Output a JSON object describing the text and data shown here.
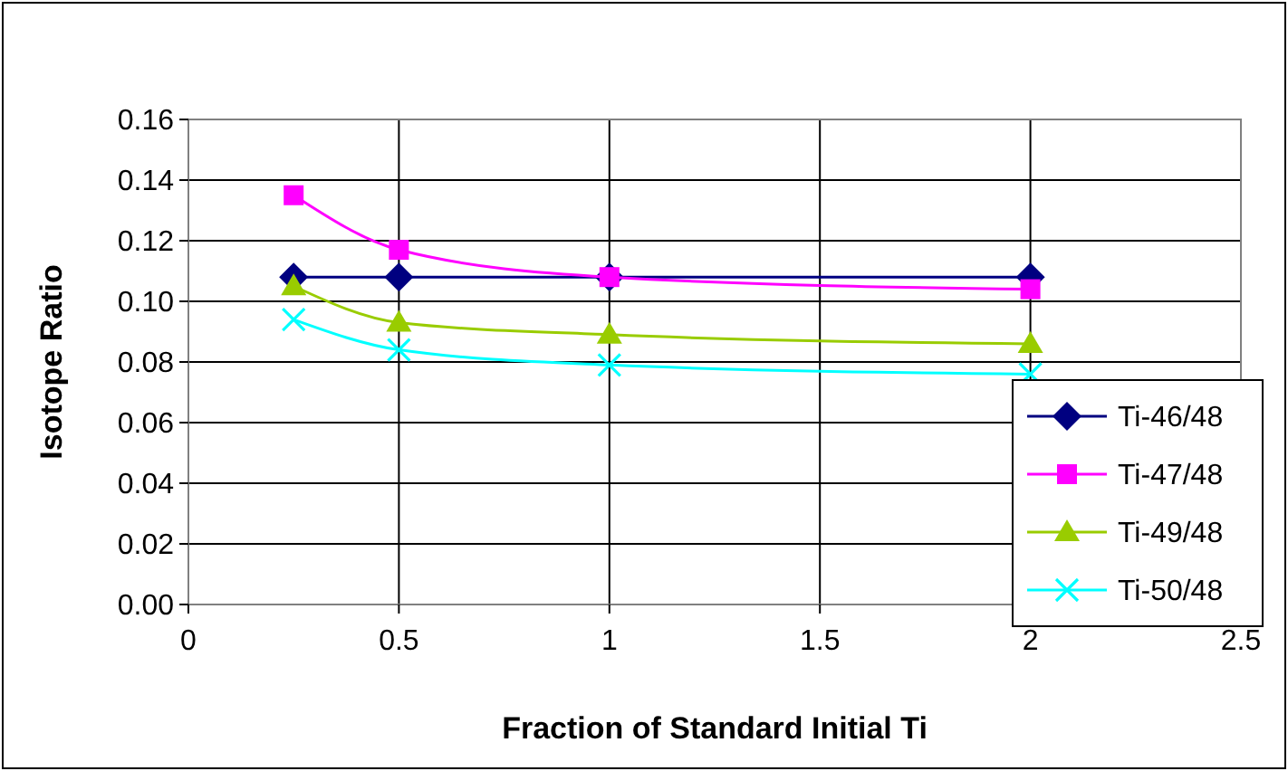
{
  "chart_data": {
    "type": "line",
    "xlabel": "Fraction of Standard Initial Ti",
    "ylabel": "Isotope Ratio",
    "x": [
      0.25,
      0.5,
      1,
      2
    ],
    "series": [
      {
        "name": "Ti-46/48",
        "color": "#000080",
        "marker": "diamond",
        "values": [
          0.108,
          0.108,
          0.108,
          0.108
        ]
      },
      {
        "name": "Ti-47/48",
        "color": "#ff00ff",
        "marker": "square",
        "values": [
          0.135,
          0.117,
          0.108,
          0.104
        ]
      },
      {
        "name": "Ti-49/48",
        "color": "#99cc00",
        "marker": "triangle",
        "values": [
          0.105,
          0.093,
          0.089,
          0.086
        ]
      },
      {
        "name": "Ti-50/48",
        "color": "#00ffff",
        "marker": "cross",
        "values": [
          0.094,
          0.084,
          0.079,
          0.076
        ]
      }
    ],
    "xlim": [
      0,
      2.5
    ],
    "xticks": [
      0,
      0.5,
      1,
      1.5,
      2,
      2.5
    ],
    "ylim": [
      0,
      0.16
    ],
    "yticks": [
      {
        "value": 0,
        "label": "0.00"
      },
      {
        "value": 0.02,
        "label": "0.02"
      },
      {
        "value": 0.04,
        "label": "0.04"
      },
      {
        "value": 0.06,
        "label": "0.06"
      },
      {
        "value": 0.08,
        "label": "0.08"
      },
      {
        "value": 0.1,
        "label": "0.10"
      },
      {
        "value": 0.12,
        "label": "0.12"
      },
      {
        "value": 0.14,
        "label": "0.14"
      },
      {
        "value": 0.16,
        "label": "0.16"
      }
    ],
    "grid": true,
    "legend": "bottom right"
  }
}
